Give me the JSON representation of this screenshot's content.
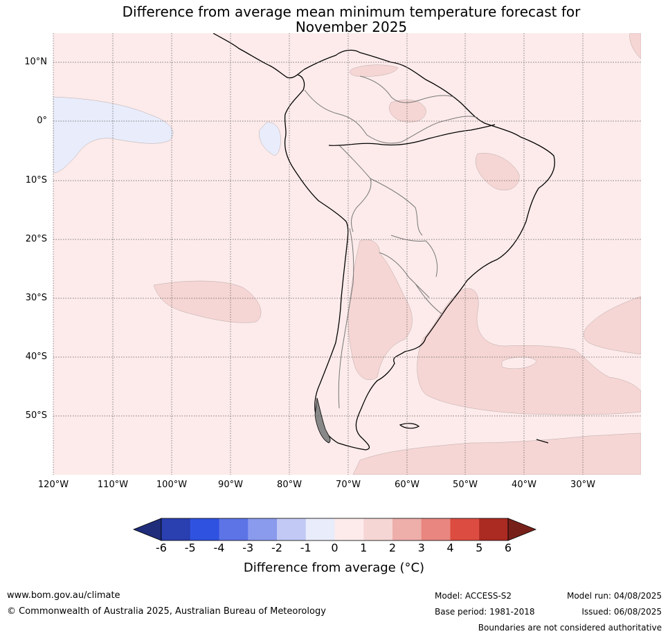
{
  "title": {
    "line1": "Difference from average mean minimum temperature forecast for",
    "line2": "November 2025"
  },
  "map": {
    "lat_labels": [
      "10°N",
      "0°",
      "10°S",
      "20°S",
      "30°S",
      "40°S",
      "50°S"
    ],
    "lon_labels": [
      "120°W",
      "110°W",
      "100°W",
      "90°W",
      "80°W",
      "70°W",
      "60°W",
      "50°W",
      "40°W",
      "30°W"
    ],
    "background_color": "#fcebea",
    "gridline_style": "dotted",
    "anomaly_regions": [
      {
        "name": "eastern-equatorial-pacific-cool",
        "category": "-1 to 0",
        "color": "#e8ecfb"
      },
      {
        "name": "galapagos-coast-cool",
        "category": "-1 to 0",
        "color": "#e8ecfb"
      },
      {
        "name": "southeast-pacific-warm",
        "category": "1 to 2",
        "color": "#f5d6d4"
      },
      {
        "name": "argentina-warm",
        "category": "1 to 2",
        "color": "#f5d6d4"
      },
      {
        "name": "south-atlantic-warm",
        "category": "1 to 2",
        "color": "#f5d6d4"
      },
      {
        "name": "brazil-northeast-warm",
        "category": "1 to 2",
        "color": "#f5d6d4"
      },
      {
        "name": "guiana-warm",
        "category": "1 to 2",
        "color": "#f5d6d4"
      },
      {
        "name": "southern-ocean-warm",
        "category": "1 to 2",
        "color": "#f5d6d4"
      }
    ]
  },
  "colorbar": {
    "ticks": [
      "-6",
      "-5",
      "-4",
      "-3",
      "-2",
      "-1",
      "0",
      "1",
      "2",
      "3",
      "4",
      "5",
      "6"
    ],
    "colors": [
      "#1f2d7a",
      "#2a3fb0",
      "#2f52e0",
      "#5c74e6",
      "#8a9bed",
      "#c1c9f4",
      "#e8ecfb",
      "#fcebea",
      "#f5d6d4",
      "#eeaeaa",
      "#e8867f",
      "#dd4c40",
      "#ab2a22",
      "#77201a"
    ],
    "label": "Difference from average (°C)"
  },
  "footer": {
    "website": "www.bom.gov.au/climate",
    "copyright": "© Commonwealth of Australia 2025, Australian Bureau of Meteorology",
    "model": "Model: ACCESS-S2",
    "base_period": "Base period: 1981-2018",
    "model_run": "Model run: 04/08/2025",
    "issued": "Issued: 06/08/2025",
    "disclaimer": "Boundaries are not considered authoritative"
  }
}
